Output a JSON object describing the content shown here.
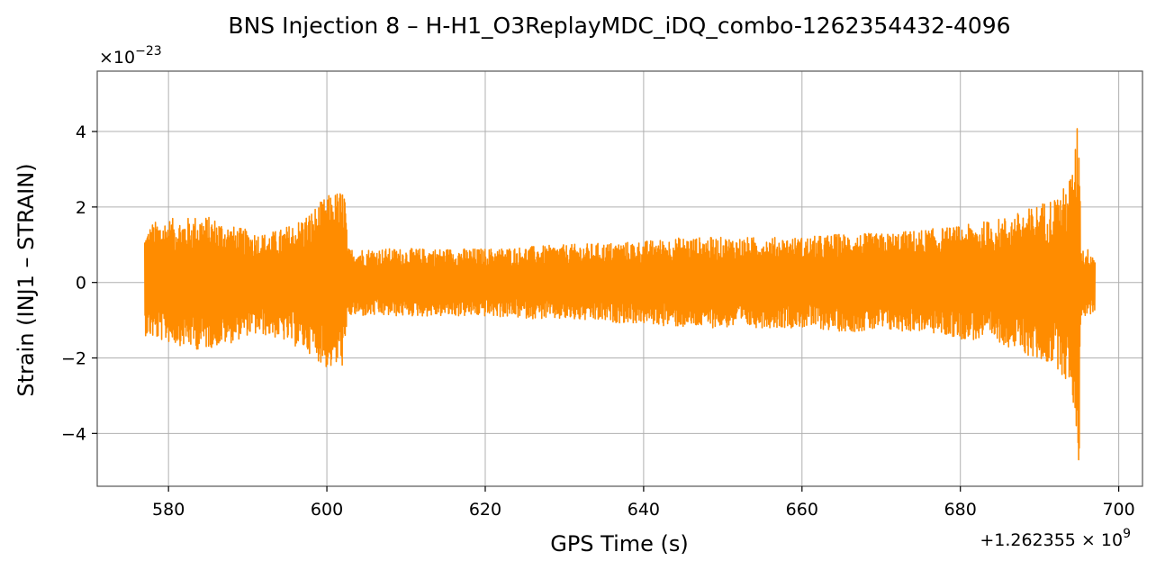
{
  "chart_data": {
    "type": "line",
    "title": "BNS Injection 8 – H-H1_O3ReplayMDC_iDQ_combo-1262354432-4096",
    "xlabel": "GPS Time (s)",
    "ylabel": "Strain (INJ1 – STRAIN)",
    "x_offset_label": "+1.262355 × 10",
    "x_offset_exp": "9",
    "y_scale_label": "×10",
    "y_scale_exp": "−23",
    "xlim": [
      571,
      703
    ],
    "ylim": [
      -5.4,
      5.6
    ],
    "x_ticks": [
      580,
      600,
      620,
      640,
      660,
      680,
      700
    ],
    "x_tick_labels": [
      "580",
      "600",
      "620",
      "640",
      "660",
      "680",
      "700"
    ],
    "y_ticks": [
      -4,
      -2,
      0,
      2,
      4
    ],
    "y_tick_labels": [
      "−4",
      "−2",
      "0",
      "2",
      "4"
    ],
    "grid": true,
    "series": [
      {
        "color": "#ff8c00",
        "x_range": [
          577,
          697
        ],
        "envelope": {
          "x": [
            577,
            578,
            580,
            582,
            584,
            586,
            588,
            590,
            592,
            594,
            596,
            598,
            599,
            600,
            601,
            602.3,
            602.6,
            605,
            610,
            620,
            630,
            640,
            645,
            650,
            655,
            660,
            665,
            670,
            675,
            680,
            685,
            688,
            690,
            692,
            693,
            694,
            694.5,
            694.8,
            695,
            695.2,
            695.5,
            696,
            697
          ],
          "upper": [
            1.3,
            1.6,
            1.7,
            1.7,
            1.8,
            1.7,
            1.5,
            1.4,
            1.3,
            1.4,
            1.6,
            1.9,
            2.1,
            2.3,
            2.4,
            2.5,
            0.9,
            0.9,
            0.9,
            0.9,
            1.0,
            1.1,
            1.2,
            1.2,
            1.2,
            1.2,
            1.3,
            1.3,
            1.4,
            1.5,
            1.7,
            1.9,
            2.1,
            2.3,
            2.5,
            2.9,
            3.5,
            4.5,
            5.1,
            1.0,
            0.9,
            0.9,
            0.8
          ],
          "lower": [
            -1.4,
            -1.5,
            -1.6,
            -1.7,
            -1.8,
            -1.7,
            -1.6,
            -1.4,
            -1.4,
            -1.5,
            -1.7,
            -1.9,
            -2.1,
            -2.3,
            -2.3,
            -2.2,
            -0.9,
            -0.9,
            -0.9,
            -0.9,
            -1.0,
            -1.1,
            -1.2,
            -1.2,
            -1.2,
            -1.2,
            -1.3,
            -1.3,
            -1.3,
            -1.5,
            -1.6,
            -1.9,
            -2.1,
            -2.2,
            -2.5,
            -2.9,
            -3.6,
            -4.6,
            -4.9,
            -1.0,
            -0.9,
            -0.9,
            -0.8
          ]
        }
      }
    ]
  }
}
